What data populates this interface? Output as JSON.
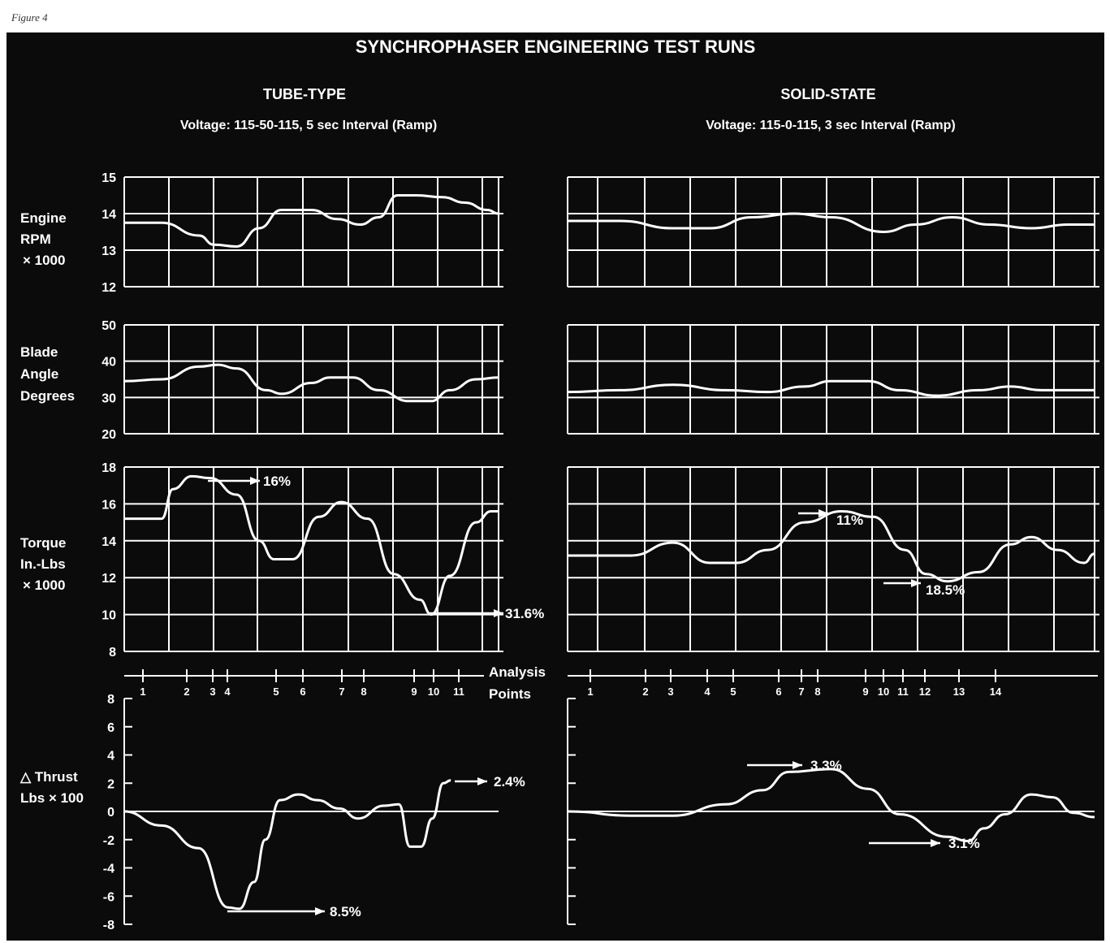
{
  "figure_label": "Figure 4",
  "title": "SYNCHROPHASER ENGINEERING TEST RUNS",
  "colors": {
    "background": "#0b0b0b",
    "ink": "#ffffff",
    "page": "#ffffff"
  },
  "left": {
    "heading": "TUBE-TYPE",
    "subheading": "Voltage: 115-50-115, 5 sec Interval (Ramp)"
  },
  "right": {
    "heading": "SOLID-STATE",
    "subheading": "Voltage: 115-0-115, 3 sec Interval (Ramp)"
  },
  "row_labels": {
    "rpm": [
      "Engine",
      "RPM",
      "× 1000"
    ],
    "blade": [
      "Blade",
      "Angle",
      "Degrees"
    ],
    "torque": [
      "Torque",
      "In.-Lbs",
      "× 1000"
    ],
    "thrust": [
      "△ Thrust",
      "Lbs × 100"
    ],
    "analysis": [
      "Analysis",
      "Points"
    ]
  },
  "chart_data": [
    {
      "type": "line",
      "panel": "tube-type",
      "metric": "Engine RPM × 1000",
      "ylim": [
        12,
        15
      ],
      "yticks": [
        12,
        13,
        14,
        15
      ],
      "grid": true,
      "points": [
        [
          0,
          13.75
        ],
        [
          0.1,
          13.75
        ],
        [
          0.2,
          13.4
        ],
        [
          0.24,
          13.15
        ],
        [
          0.3,
          13.1
        ],
        [
          0.36,
          13.6
        ],
        [
          0.42,
          14.1
        ],
        [
          0.5,
          14.1
        ],
        [
          0.57,
          13.85
        ],
        [
          0.63,
          13.7
        ],
        [
          0.68,
          13.9
        ],
        [
          0.73,
          14.5
        ],
        [
          0.78,
          14.5
        ],
        [
          0.85,
          14.45
        ],
        [
          0.91,
          14.3
        ],
        [
          0.97,
          14.1
        ],
        [
          1,
          14.0
        ]
      ]
    },
    {
      "type": "line",
      "panel": "tube-type",
      "metric": "Blade Angle Degrees",
      "ylim": [
        20,
        50
      ],
      "yticks": [
        20,
        30,
        40,
        50
      ],
      "grid": true,
      "points": [
        [
          0,
          34.5
        ],
        [
          0.1,
          35
        ],
        [
          0.2,
          38.5
        ],
        [
          0.25,
          39
        ],
        [
          0.3,
          38
        ],
        [
          0.38,
          32
        ],
        [
          0.42,
          31
        ],
        [
          0.5,
          34
        ],
        [
          0.55,
          35.5
        ],
        [
          0.61,
          35.5
        ],
        [
          0.68,
          32
        ],
        [
          0.76,
          29
        ],
        [
          0.82,
          29
        ],
        [
          0.87,
          32
        ],
        [
          0.94,
          35
        ],
        [
          1,
          35.5
        ]
      ]
    },
    {
      "type": "line",
      "panel": "tube-type",
      "metric": "Torque In.-Lbs × 1000",
      "ylim": [
        8,
        18
      ],
      "yticks": [
        8,
        10,
        12,
        14,
        16,
        18
      ],
      "grid": true,
      "points": [
        [
          0,
          15.2
        ],
        [
          0.1,
          15.2
        ],
        [
          0.13,
          16.8
        ],
        [
          0.18,
          17.5
        ],
        [
          0.23,
          17.4
        ],
        [
          0.3,
          16.5
        ],
        [
          0.36,
          14
        ],
        [
          0.4,
          13
        ],
        [
          0.45,
          13
        ],
        [
          0.52,
          15.3
        ],
        [
          0.58,
          16.1
        ],
        [
          0.65,
          15.2
        ],
        [
          0.72,
          12.2
        ],
        [
          0.79,
          10.8
        ],
        [
          0.82,
          10
        ],
        [
          0.87,
          12.1
        ],
        [
          0.94,
          15
        ],
        [
          0.98,
          15.6
        ],
        [
          1,
          15.6
        ]
      ],
      "annotations": [
        "16%",
        "31.6%"
      ]
    },
    {
      "type": "line",
      "panel": "tube-type",
      "metric": "△ Thrust Lbs × 100",
      "ylim": [
        -8,
        8
      ],
      "yticks": [
        -8,
        -6,
        -4,
        -2,
        0,
        2,
        4,
        6,
        8
      ],
      "grid": false,
      "points": [
        [
          0,
          0
        ],
        [
          0.1,
          -1
        ],
        [
          0.2,
          -2.6
        ],
        [
          0.28,
          -6.8
        ],
        [
          0.31,
          -6.9
        ],
        [
          0.35,
          -5
        ],
        [
          0.38,
          -2
        ],
        [
          0.42,
          0.8
        ],
        [
          0.47,
          1.2
        ],
        [
          0.52,
          0.8
        ],
        [
          0.58,
          0.2
        ],
        [
          0.63,
          -0.5
        ],
        [
          0.7,
          0.4
        ],
        [
          0.74,
          0.5
        ],
        [
          0.77,
          -2.5
        ],
        [
          0.8,
          -2.5
        ],
        [
          0.83,
          -0.5
        ],
        [
          0.86,
          2
        ],
        [
          0.88,
          2.2
        ]
      ],
      "annotations": [
        "2.4%",
        "8.5%"
      ]
    },
    {
      "type": "line",
      "panel": "solid-state",
      "metric": "Engine RPM × 1000",
      "ylim": [
        12,
        15
      ],
      "yticks": [
        12,
        13,
        14,
        15
      ],
      "grid": true,
      "points": [
        [
          0,
          13.8
        ],
        [
          0.1,
          13.8
        ],
        [
          0.2,
          13.6
        ],
        [
          0.27,
          13.6
        ],
        [
          0.35,
          13.9
        ],
        [
          0.43,
          14.0
        ],
        [
          0.5,
          13.9
        ],
        [
          0.6,
          13.5
        ],
        [
          0.66,
          13.7
        ],
        [
          0.73,
          13.9
        ],
        [
          0.8,
          13.7
        ],
        [
          0.88,
          13.6
        ],
        [
          0.95,
          13.7
        ],
        [
          1,
          13.7
        ]
      ]
    },
    {
      "type": "line",
      "panel": "solid-state",
      "metric": "Blade Angle Degrees",
      "ylim": [
        20,
        50
      ],
      "yticks": [
        20,
        30,
        40,
        50
      ],
      "grid": true,
      "points": [
        [
          0,
          31.5
        ],
        [
          0.1,
          32
        ],
        [
          0.2,
          33.5
        ],
        [
          0.3,
          32
        ],
        [
          0.38,
          31.5
        ],
        [
          0.45,
          33
        ],
        [
          0.5,
          34.5
        ],
        [
          0.57,
          34.5
        ],
        [
          0.63,
          32
        ],
        [
          0.7,
          30.5
        ],
        [
          0.78,
          32
        ],
        [
          0.84,
          33
        ],
        [
          0.9,
          32
        ],
        [
          1,
          32
        ]
      ]
    },
    {
      "type": "line",
      "panel": "solid-state",
      "metric": "Torque In.-Lbs × 1000",
      "ylim": [
        8,
        18
      ],
      "yticks": [
        8,
        10,
        12,
        14,
        16,
        18
      ],
      "grid": true,
      "points": [
        [
          0,
          13.2
        ],
        [
          0.12,
          13.2
        ],
        [
          0.2,
          13.9
        ],
        [
          0.27,
          12.8
        ],
        [
          0.32,
          12.8
        ],
        [
          0.38,
          13.5
        ],
        [
          0.45,
          15
        ],
        [
          0.52,
          15.6
        ],
        [
          0.58,
          15.3
        ],
        [
          0.64,
          13.5
        ],
        [
          0.68,
          12.2
        ],
        [
          0.72,
          11.8
        ],
        [
          0.78,
          12.3
        ],
        [
          0.84,
          13.8
        ],
        [
          0.88,
          14.2
        ],
        [
          0.93,
          13.5
        ],
        [
          0.98,
          12.8
        ],
        [
          1,
          13.3
        ]
      ],
      "annotations": [
        "11%",
        "18.5%"
      ]
    },
    {
      "type": "line",
      "panel": "solid-state",
      "metric": "△ Thrust Lbs × 100",
      "ylim": [
        -8,
        8
      ],
      "yticks": [
        -8,
        -6,
        -4,
        -2,
        0,
        2,
        4,
        6,
        8
      ],
      "grid": false,
      "points": [
        [
          0,
          0
        ],
        [
          0.12,
          -0.3
        ],
        [
          0.2,
          -0.3
        ],
        [
          0.3,
          0.5
        ],
        [
          0.37,
          1.5
        ],
        [
          0.42,
          2.8
        ],
        [
          0.5,
          3
        ],
        [
          0.57,
          1.6
        ],
        [
          0.63,
          -0.2
        ],
        [
          0.72,
          -1.8
        ],
        [
          0.76,
          -2.1
        ],
        [
          0.79,
          -1.2
        ],
        [
          0.83,
          -0.2
        ],
        [
          0.88,
          1.2
        ],
        [
          0.92,
          1.0
        ],
        [
          0.96,
          -0.1
        ],
        [
          1,
          -0.4
        ]
      ],
      "annotations": [
        "3.3%",
        "3.1%"
      ]
    }
  ],
  "analysis_points": {
    "left": [
      "1",
      "2",
      "3",
      "4",
      "5",
      "6",
      "7",
      "8",
      "9",
      "10",
      "11"
    ],
    "right": [
      "1",
      "2",
      "3",
      "4",
      "5",
      "6",
      "7",
      "8",
      "9",
      "10",
      "11",
      "12",
      "13",
      "14"
    ]
  },
  "annotations": {
    "t_torque_top": "16%",
    "t_torque_bottom": "31.6%",
    "t_thrust_top": "2.4%",
    "t_thrust_bottom": "8.5%",
    "s_torque_top": "11%",
    "s_torque_bottom": "18.5%",
    "s_thrust_top": "3.3%",
    "s_thrust_bottom": "3.1%"
  }
}
